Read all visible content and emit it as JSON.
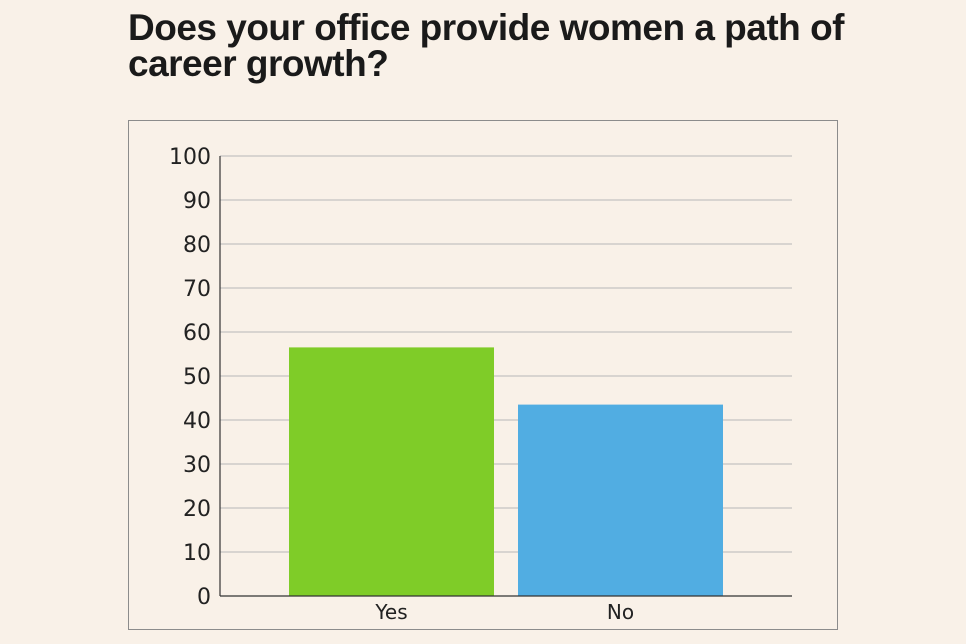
{
  "chart_data": {
    "type": "bar",
    "title": "Does your office provide women a path of career growth?",
    "xlabel": "",
    "ylabel": "",
    "categories": [
      "Yes",
      "No"
    ],
    "values": [
      56.5,
      43.5
    ],
    "colors": [
      "#7fcc28",
      "#51ade2"
    ],
    "ylim": [
      0,
      100
    ],
    "yticks": [
      0,
      10,
      20,
      30,
      40,
      50,
      60,
      70,
      80,
      90,
      100
    ],
    "grid": true,
    "legend": "none"
  }
}
